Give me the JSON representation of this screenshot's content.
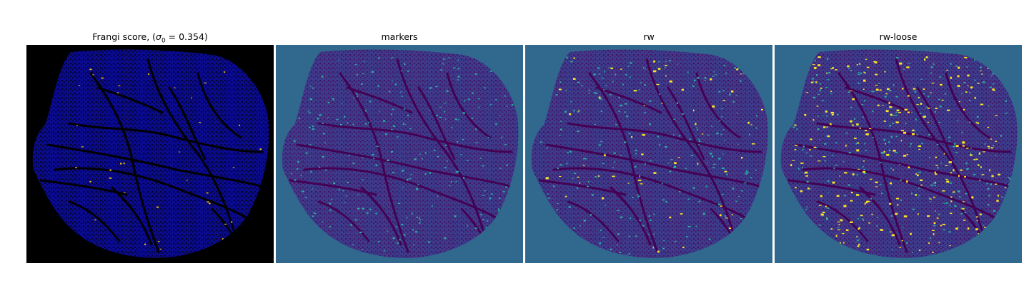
{
  "panels": [
    {
      "title_prefix": "Frangi score, (",
      "title_math": "σ",
      "title_sub": "0",
      "title_suffix": " = 0.354)",
      "colormap": "gnuplot2",
      "bg": "#000000",
      "blob": "#0a0a8c",
      "vessel": "#000000",
      "accent": "#f2c200"
    },
    {
      "title": "markers",
      "colormap": "viridis",
      "bg": "#31688e",
      "blob": "#3e3a8a",
      "vessel": "#440154",
      "accent": "#2ab0a0"
    },
    {
      "title": "rw",
      "colormap": "viridis",
      "bg": "#31688e",
      "blob": "#3e3a8a",
      "vessel": "#440154",
      "accent": "#2ab0a0",
      "highlight": "#fde725"
    },
    {
      "title": "rw-loose",
      "colormap": "viridis",
      "bg": "#31688e",
      "blob": "#3e3a8a",
      "vessel": "#440154",
      "accent": "#2ab0a0",
      "highlight": "#fde725"
    }
  ]
}
